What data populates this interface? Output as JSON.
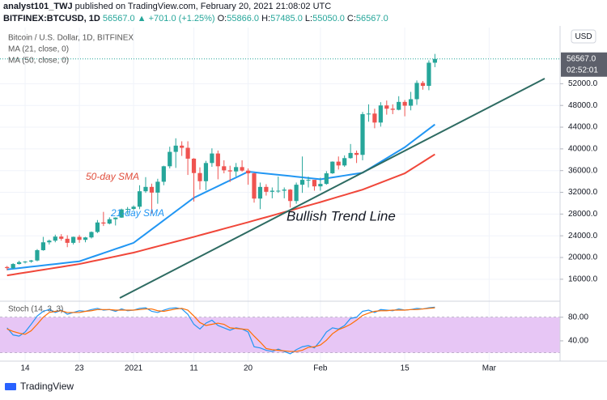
{
  "header": {
    "author": "analyst101_TWJ",
    "published": "published on TradingView.com, February 20, 2021 21:08:02 UTC",
    "symbol": "BITFINEX:BTCUSD, 1D",
    "last": "56567.0",
    "change": "▲ +701.0 (+1.25%)",
    "ohlc": [
      {
        "label": "O:",
        "value": "55866.0"
      },
      {
        "label": "H:",
        "value": "57485.0"
      },
      {
        "label": "L:",
        "value": "55050.0"
      },
      {
        "label": "C:",
        "value": "56567.0"
      }
    ]
  },
  "footer": {
    "logo": "TradingView"
  },
  "chart_data": [
    {
      "type": "candlestick",
      "currency": "USD",
      "price_label": "56567.0",
      "countdown": "02:52:01",
      "annotations": [
        "50-day SMA",
        "21-day SMA",
        "Bullish Trend Line"
      ],
      "up_color": "#26a69a",
      "down_color": "#ef5350",
      "grid": true,
      "ylim": [
        12250,
        61450
      ],
      "yticks": [
        {
          "value": 16000,
          "label": "16000.0"
        },
        {
          "value": 20000,
          "label": "20000.0"
        },
        {
          "value": 24000,
          "label": "24000.0"
        },
        {
          "value": 28000,
          "label": "28000.0"
        },
        {
          "value": 32000,
          "label": "32000.0"
        },
        {
          "value": 36000,
          "label": "36000.0"
        },
        {
          "value": 40000,
          "label": "40000.0"
        },
        {
          "value": 44000,
          "label": "44000.0"
        },
        {
          "value": 48000,
          "label": "48000.0"
        },
        {
          "value": 52000,
          "label": "52000.0"
        }
      ],
      "categories": [
        null,
        null,
        null,
        "14",
        null,
        null,
        null,
        null,
        null,
        null,
        null,
        null,
        "23",
        null,
        null,
        null,
        null,
        null,
        null,
        null,
        null,
        "2021",
        null,
        null,
        null,
        null,
        null,
        null,
        null,
        null,
        null,
        "11",
        null,
        null,
        null,
        null,
        null,
        null,
        null,
        null,
        "20",
        null,
        null,
        null,
        null,
        null,
        null,
        null,
        null,
        null,
        null,
        null,
        "Feb",
        null,
        null,
        null,
        null,
        null,
        null,
        null,
        null,
        null,
        null,
        null,
        null,
        null,
        "15",
        null,
        null,
        null,
        null,
        null,
        null,
        null,
        null,
        null,
        null,
        null,
        null,
        null,
        "Mar",
        null,
        null,
        null,
        null,
        null,
        null,
        null,
        null,
        null,
        null,
        null
      ],
      "series": [
        {
          "name": "Bitcoin / U.S. Dollar, 1D, BITFINEX",
          "open": [
            18250,
            18050,
            18800,
            19150,
            19250,
            19450,
            21350,
            22800,
            23100,
            23850,
            23450,
            22700,
            23800,
            23250,
            23700,
            24700,
            26450,
            26250,
            27050,
            27350,
            28850,
            28950,
            29350,
            32200,
            33000,
            31950,
            33950,
            36800,
            39450,
            40600,
            40200,
            38200,
            35550,
            34050,
            37400,
            39150,
            36800,
            36050,
            35850,
            36650,
            36000,
            35500,
            30850,
            33000,
            32100,
            32300,
            32300,
            32500,
            30400,
            33400,
            34300,
            34300,
            33100,
            33550,
            35500,
            37650,
            36950,
            38300,
            39250,
            38900,
            46400,
            46500,
            44850,
            48000,
            47400,
            47200,
            48650,
            47950,
            49150,
            52150,
            51600,
            55866,
            null,
            null,
            null,
            null,
            null,
            null,
            null,
            null,
            null,
            null,
            null,
            null,
            null,
            null,
            null,
            null,
            null,
            null,
            null,
            null
          ],
          "high": [
            18450,
            18950,
            19400,
            19350,
            19550,
            21550,
            23800,
            23300,
            24200,
            24300,
            24100,
            23850,
            24150,
            23800,
            24800,
            26900,
            28400,
            27400,
            27400,
            29000,
            29300,
            29600,
            33300,
            34800,
            33600,
            34500,
            36900,
            40400,
            41950,
            41400,
            41400,
            38300,
            36600,
            37800,
            40100,
            39700,
            37900,
            36900,
            37400,
            37900,
            36400,
            35600,
            33800,
            33500,
            32900,
            34900,
            32900,
            32600,
            33800,
            38600,
            34900,
            34300,
            34700,
            35900,
            37700,
            38600,
            38800,
            40900,
            39700,
            46800,
            48200,
            47400,
            48600,
            48900,
            48200,
            49700,
            49000,
            50500,
            52600,
            52500,
            56300,
            57485,
            null,
            null,
            null,
            null,
            null,
            null,
            null,
            null,
            null,
            null,
            null,
            null,
            null,
            null,
            null,
            null,
            null,
            null,
            null,
            null
          ],
          "low": [
            17650,
            17900,
            18700,
            18900,
            19050,
            19300,
            21250,
            22400,
            22800,
            23100,
            21900,
            22400,
            22700,
            22800,
            23500,
            24500,
            25800,
            26100,
            25900,
            27300,
            27900,
            28700,
            28900,
            31900,
            28100,
            29900,
            33300,
            36400,
            36500,
            38700,
            35200,
            30300,
            32500,
            32400,
            36700,
            34400,
            35500,
            33900,
            34900,
            35800,
            33400,
            30100,
            28900,
            31400,
            30900,
            31900,
            30900,
            29200,
            29900,
            31900,
            32900,
            32300,
            32300,
            33400,
            35400,
            36200,
            36700,
            38200,
            37400,
            37900,
            45000,
            43800,
            44100,
            46300,
            46400,
            47100,
            46000,
            47100,
            48100,
            50900,
            50800,
            55050,
            null,
            null,
            null,
            null,
            null,
            null,
            null,
            null,
            null,
            null,
            null,
            null,
            null,
            null,
            null,
            null,
            null,
            null,
            null,
            null
          ],
          "close": [
            18050,
            18800,
            19150,
            19250,
            19450,
            21350,
            22800,
            23100,
            23850,
            23450,
            22700,
            23800,
            23250,
            23700,
            24700,
            26450,
            26250,
            27050,
            27350,
            28850,
            28950,
            29350,
            32200,
            33000,
            31950,
            33950,
            36800,
            39450,
            40600,
            40200,
            38200,
            35550,
            34050,
            37400,
            39150,
            36800,
            36050,
            35850,
            36650,
            36000,
            35500,
            30850,
            33000,
            32100,
            32300,
            32300,
            32500,
            30400,
            33400,
            34300,
            34300,
            33100,
            33550,
            35500,
            37650,
            36950,
            38300,
            39250,
            38900,
            46400,
            46500,
            44850,
            48000,
            47400,
            47200,
            48650,
            47950,
            49150,
            52150,
            51600,
            55866,
            56567,
            null,
            null,
            null,
            null,
            null,
            null,
            null,
            null,
            null,
            null,
            null,
            null,
            null,
            null,
            null,
            null,
            null,
            null,
            null,
            null
          ]
        },
        {
          "name": "MA (21, close, 0)",
          "color": "#2196f3",
          "values": [
            17800,
            17925,
            18050,
            18175,
            18300,
            18425,
            18550,
            18675,
            18800,
            18925,
            19050,
            19175,
            19300,
            19680,
            20060,
            20430,
            20810,
            21190,
            21570,
            21940,
            22320,
            22700,
            23530,
            24360,
            25190,
            26020,
            26850,
            27680,
            28510,
            29340,
            30170,
            31000,
            31530,
            32070,
            32600,
            33130,
            33670,
            34200,
            34730,
            35270,
            35800,
            35690,
            35570,
            35460,
            35340,
            35230,
            35110,
            35000,
            34880,
            34760,
            34640,
            34520,
            34400,
            34570,
            34740,
            34910,
            35090,
            35260,
            35430,
            35600,
            36270,
            36940,
            37610,
            38290,
            38960,
            39630,
            40300,
            41140,
            41980,
            42820,
            43660,
            44500,
            null,
            null,
            null,
            null,
            null,
            null,
            null,
            null,
            null,
            null,
            null,
            null,
            null,
            null,
            null,
            null,
            null,
            null,
            null,
            null
          ]
        },
        {
          "name": "MA (50, close, 0)",
          "color": "#f0473a",
          "values": [
            16700,
            16875,
            17050,
            17225,
            17400,
            17575,
            17750,
            17925,
            18100,
            18275,
            18450,
            18625,
            18800,
            19030,
            19270,
            19500,
            19730,
            19970,
            20200,
            20430,
            20670,
            20900,
            21190,
            21480,
            21770,
            22060,
            22350,
            22640,
            22930,
            23220,
            23510,
            23800,
            24100,
            24400,
            24700,
            25000,
            25300,
            25600,
            25900,
            26200,
            26500,
            26810,
            27120,
            27420,
            27730,
            28040,
            28350,
            28660,
            28970,
            29270,
            29580,
            29890,
            30200,
            30530,
            30860,
            31190,
            31510,
            31840,
            32170,
            32500,
            32930,
            33360,
            33790,
            34210,
            34640,
            35070,
            35500,
            36200,
            36900,
            37600,
            38300,
            39000,
            null,
            null,
            null,
            null,
            null,
            null,
            null,
            null,
            null,
            null,
            null,
            null,
            null,
            null,
            null,
            null,
            null,
            null,
            null,
            null
          ]
        }
      ]
    },
    {
      "type": "line",
      "title": "Stoch (14, 3, 3)",
      "ylim": [
        7,
        103
      ],
      "band": [
        20,
        80
      ],
      "band_color": "#e7c6f5",
      "yticks": [
        {
          "value": 80,
          "label": "80.00"
        },
        {
          "value": 40,
          "label": "40.00"
        }
      ],
      "series": [
        {
          "color": "#2196f3",
          "values": [
            62,
            50,
            48,
            55,
            68,
            82,
            90,
            93,
            88,
            92,
            85,
            88,
            91,
            90,
            93,
            95,
            92,
            93,
            90,
            94,
            91,
            92,
            95,
            96,
            90,
            88,
            92,
            95,
            96,
            94,
            85,
            68,
            60,
            70,
            75,
            66,
            62,
            58,
            62,
            60,
            55,
            30,
            28,
            24,
            22,
            26,
            22,
            18,
            25,
            30,
            32,
            28,
            40,
            55,
            62,
            60,
            66,
            78,
            80,
            90,
            92,
            88,
            93,
            92,
            91,
            94,
            92,
            93,
            95,
            94,
            96,
            97,
            null,
            null,
            null,
            null,
            null,
            null,
            null,
            null,
            null,
            null,
            null,
            null,
            null,
            null,
            null,
            null,
            null,
            null,
            null,
            null
          ]
        },
        {
          "color": "#ff6d00",
          "values": [
            60,
            56,
            53,
            51,
            57,
            68,
            80,
            88,
            90,
            91,
            88,
            88,
            88,
            90,
            91,
            93,
            93,
            93,
            92,
            92,
            92,
            92,
            93,
            94,
            94,
            91,
            90,
            92,
            94,
            95,
            92,
            82,
            71,
            66,
            68,
            70,
            68,
            62,
            61,
            60,
            59,
            48,
            38,
            27,
            25,
            24,
            23,
            22,
            22,
            24,
            29,
            30,
            33,
            41,
            52,
            59,
            63,
            68,
            75,
            83,
            87,
            90,
            91,
            91,
            92,
            92,
            92,
            93,
            93,
            94,
            95,
            96,
            null,
            null,
            null,
            null,
            null,
            null,
            null,
            null,
            null,
            null,
            null,
            null,
            null,
            null,
            null,
            null,
            null,
            null,
            null,
            null
          ]
        }
      ]
    }
  ]
}
